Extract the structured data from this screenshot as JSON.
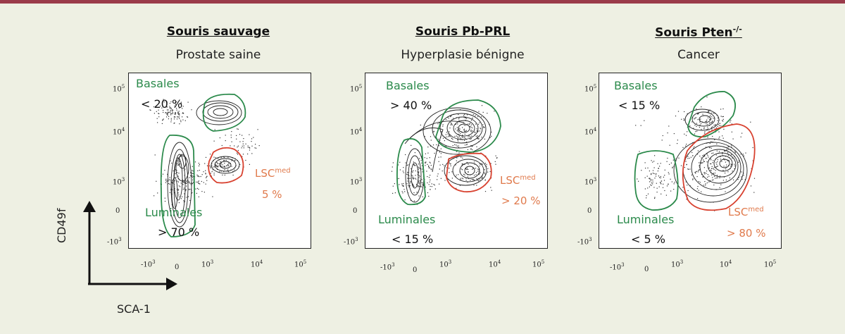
{
  "panels": [
    {
      "title": "Souris sauvage",
      "subtitle": "Prostate saine",
      "basales_label": "Basales",
      "basales_pct": "< 20 %",
      "luminales_label": "Luminales",
      "luminales_pct": "> 70 %",
      "lsc_base": "LSC",
      "lsc_sup": "med",
      "lsc_pct": "5 %"
    },
    {
      "title": "Souris Pb-PRL",
      "subtitle": "Hyperplasie bénigne",
      "basales_label": "Basales",
      "basales_pct": "> 40 %",
      "luminales_label": "Luminales",
      "luminales_pct": "< 15 %",
      "lsc_base": "LSC",
      "lsc_sup": "med",
      "lsc_pct": "> 20 %"
    },
    {
      "title": "Souris Pten",
      "title_sup": "-/-",
      "subtitle": "Cancer",
      "basales_label": "Basales",
      "basales_pct": "< 15 %",
      "luminales_label": "Luminales",
      "luminales_pct": "< 5 %",
      "lsc_base": "LSC",
      "lsc_sup": "med",
      "lsc_pct": "> 80 %"
    }
  ],
  "ticks": {
    "base": "10",
    "neg": "-10",
    "zero": "0",
    "exp3": "3",
    "exp4": "4",
    "exp5": "5"
  },
  "axes": {
    "y_label": "CD49f",
    "x_label": "SCA-1"
  },
  "colors": {
    "gate_green": "#2b8a4b",
    "gate_red": "#d8412f",
    "lsc_orange": "#e07a4c",
    "top_bar": "#9a3b4a"
  }
}
